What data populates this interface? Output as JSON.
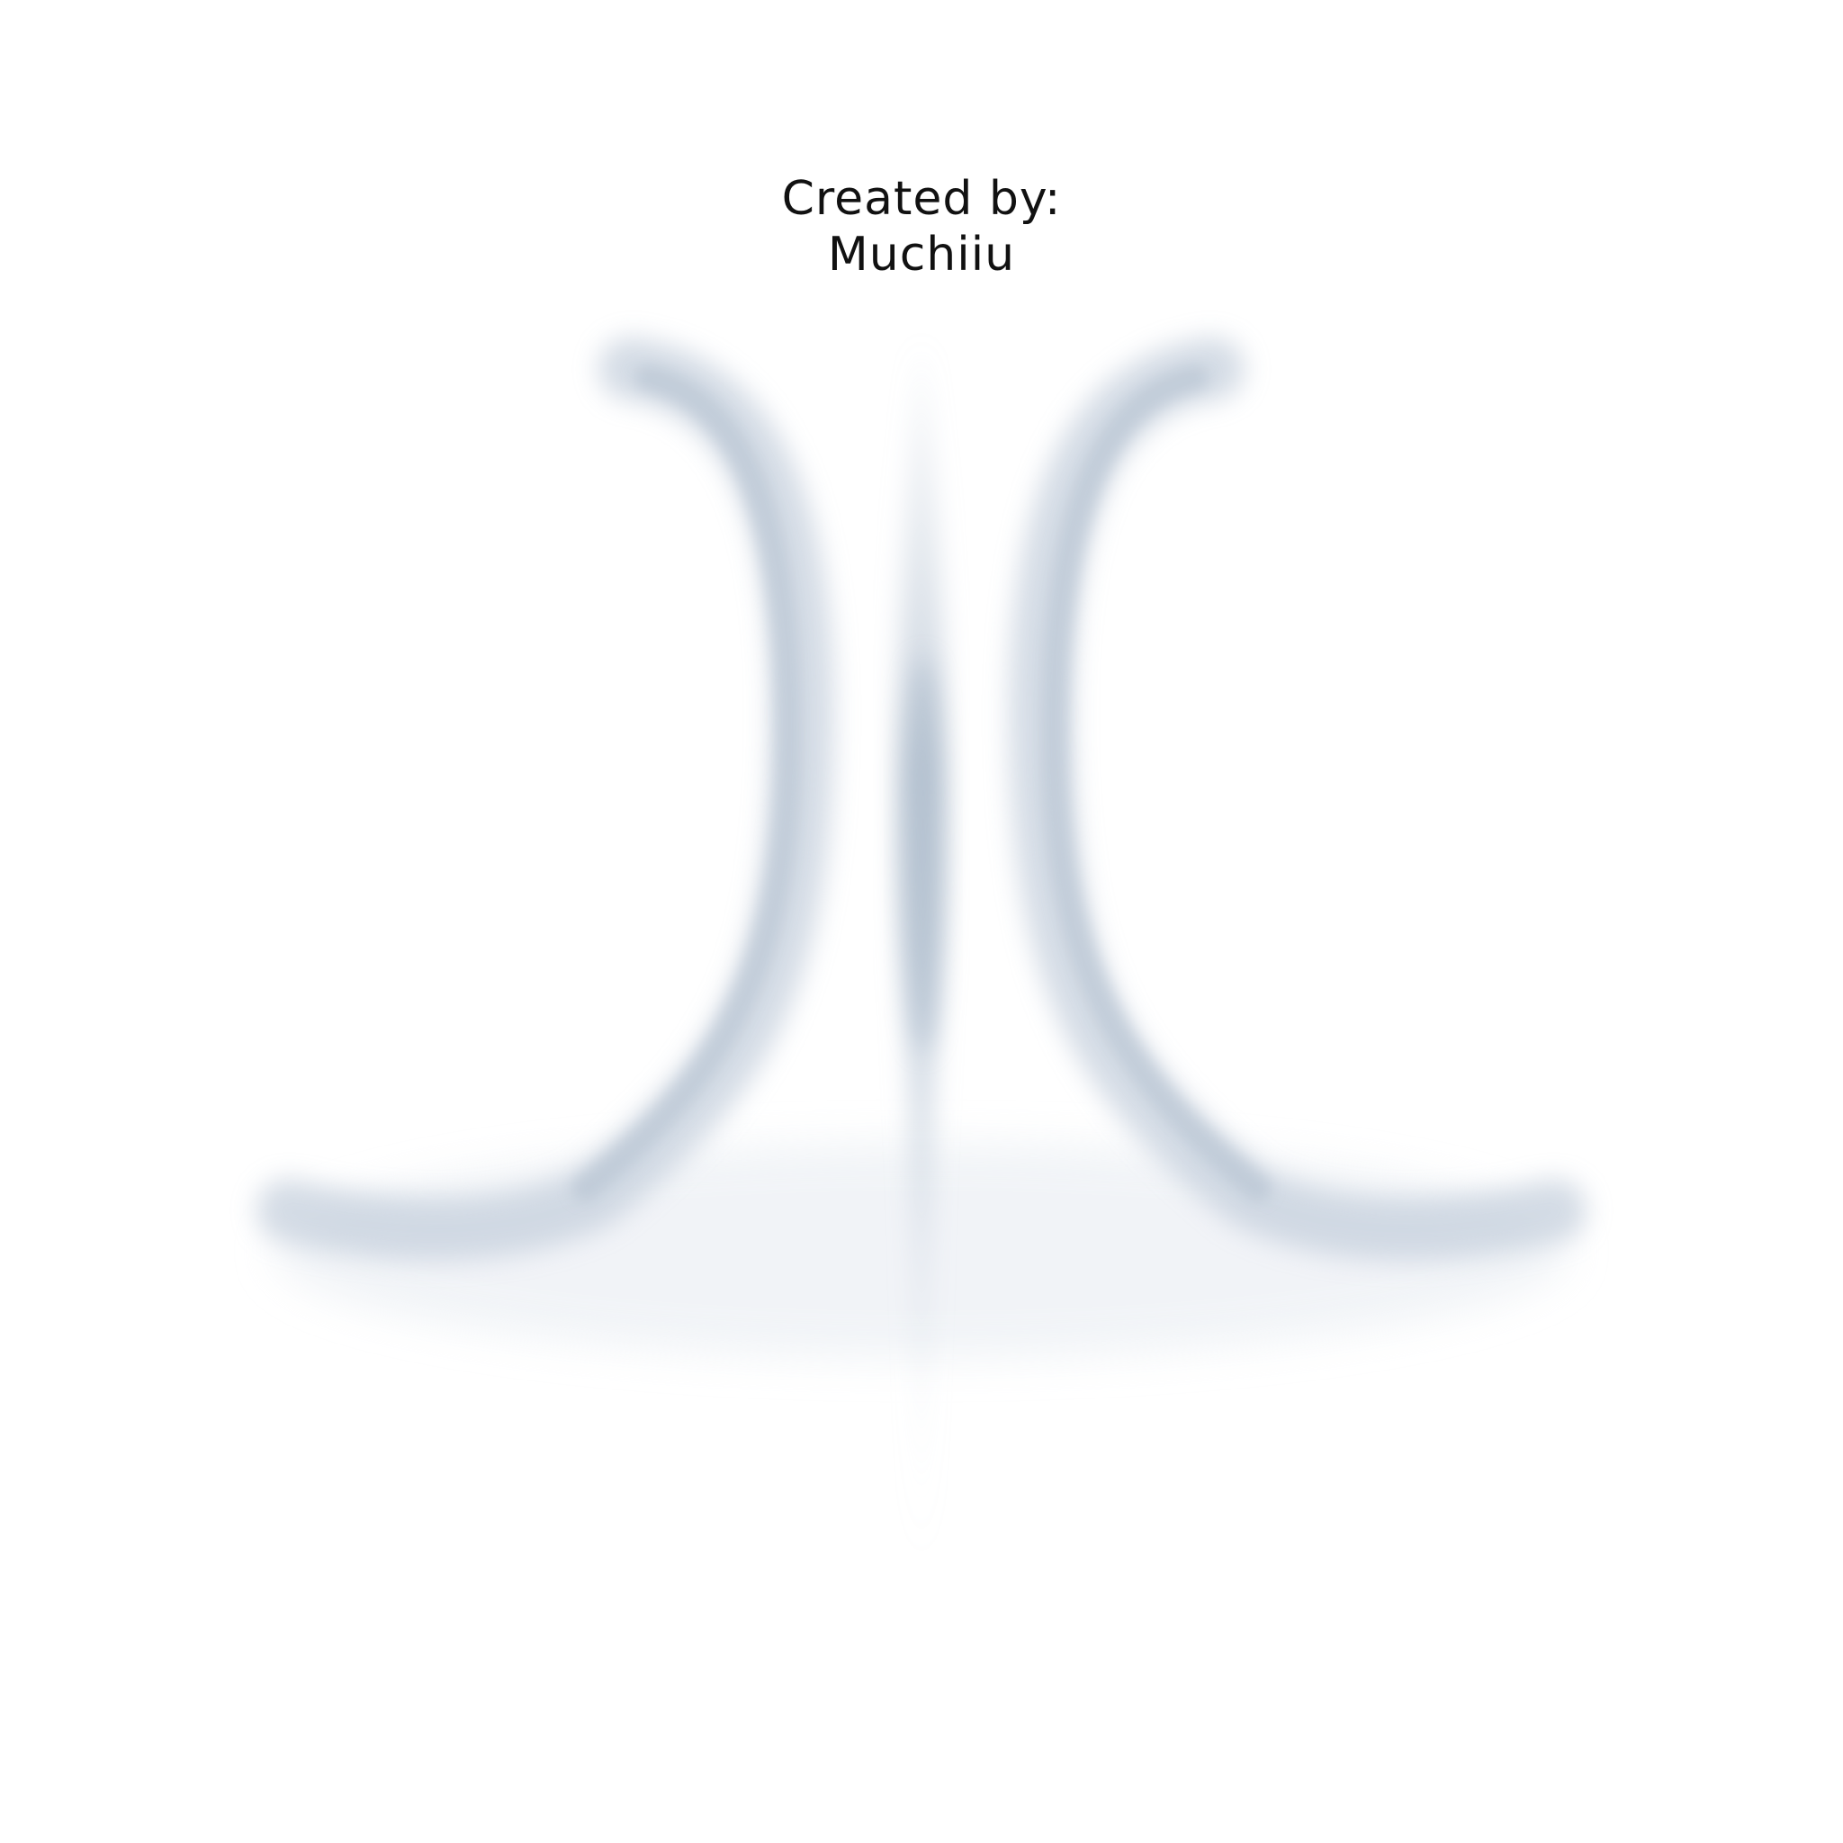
{
  "credit": {
    "line1": "Created by:",
    "line2": "Muchiiu"
  },
  "colors": {
    "background": "#ffffff",
    "text": "#111111",
    "shadow": "#b8c6d6"
  }
}
